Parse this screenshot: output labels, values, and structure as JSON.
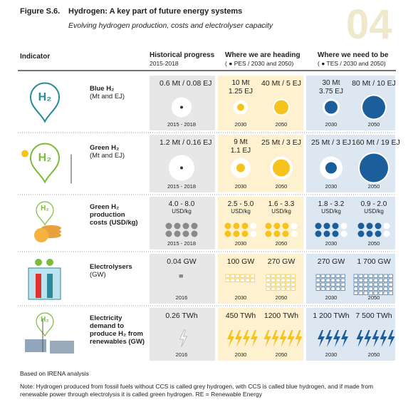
{
  "header": {
    "figure": "Figure S.6.",
    "title": "Hydrogen: A key part of future energy systems",
    "subtitle": "Evolving hydrogen production, costs and electrolyser capacity",
    "badge": "04"
  },
  "columns": {
    "indicator": "Indicator",
    "historical": "Historical progress",
    "historical_sub": "2015-2018",
    "heading": "Where we are heading",
    "heading_sub": "( ● PES / 2030 and 2050)",
    "need": "Where we need to be",
    "need_sub": "( ● TES / 2030 and 2050)"
  },
  "rows": [
    {
      "icon": "H₂",
      "name": [
        "Blue H₂"
      ],
      "sub": "(Mt and EJ)",
      "cells": [
        {
          "value": [
            "0.6 Mt / 0.08 EJ"
          ],
          "year": "2015 - 2018"
        },
        {
          "value": [
            "10 Mt",
            "1.25 EJ"
          ],
          "year": "2030"
        },
        {
          "value": [
            "40 Mt / 5 EJ"
          ],
          "year": "2050"
        },
        {
          "value": [
            "30 Mt",
            "3.75 EJ"
          ],
          "year": "2030"
        },
        {
          "value": [
            "80 Mt / 10 EJ"
          ],
          "year": "2050"
        }
      ]
    },
    {
      "icon": "H₂",
      "name": [
        "Green H₂"
      ],
      "sub": "(Mt and EJ)",
      "cells": [
        {
          "value": [
            "1.2 Mt / 0.16 EJ"
          ],
          "year": "2015 - 2018"
        },
        {
          "value": [
            "9 Mt",
            "1.1 EJ"
          ],
          "year": "2030"
        },
        {
          "value": [
            "25 Mt / 3 EJ"
          ],
          "year": "2050"
        },
        {
          "value": [
            "25 Mt / 3 EJ"
          ],
          "year": "2030"
        },
        {
          "value": [
            "160 Mt / 19 EJ"
          ],
          "year": "2050"
        }
      ]
    },
    {
      "icon": "H₂",
      "name": [
        "Green H₂",
        "production",
        "costs"
      ],
      "sub": "(USD/kg)",
      "cells": [
        {
          "value": [
            "4.0 - 8.0",
            "USD/kg"
          ],
          "year": "2015 - 2018"
        },
        {
          "value": [
            "2.5 - 5.0",
            "USD/kg"
          ],
          "year": "2030"
        },
        {
          "value": [
            "1.6 - 3.3",
            "USD/kg"
          ],
          "year": "2050"
        },
        {
          "value": [
            "1.8 - 3.2",
            "USD/kg"
          ],
          "year": "2030"
        },
        {
          "value": [
            "0.9 - 2.0",
            "USD/kg"
          ],
          "year": "2050"
        }
      ]
    },
    {
      "name": [
        "Electrolysers"
      ],
      "sub": "(GW)",
      "cells": [
        {
          "value": [
            "0.04 GW"
          ],
          "year": "2016"
        },
        {
          "value": [
            "100 GW"
          ],
          "year": "2030"
        },
        {
          "value": [
            "270 GW"
          ],
          "year": "2050"
        },
        {
          "value": [
            "270 GW"
          ],
          "year": "2030"
        },
        {
          "value": [
            "1 700 GW"
          ],
          "year": "2050"
        }
      ]
    },
    {
      "icon": "H₂",
      "name": [
        "Electricity",
        "demand to",
        "produce H₂ from",
        "renewables"
      ],
      "sub": "(GW)",
      "cells": [
        {
          "value": [
            "0.26 TWh"
          ],
          "year": "2016"
        },
        {
          "value": [
            "450 TWh"
          ],
          "year": "2030"
        },
        {
          "value": [
            "1200 TWh"
          ],
          "year": "2050"
        },
        {
          "value": [
            "1 200 TWh"
          ],
          "year": "2030"
        },
        {
          "value": [
            "7 500 TWh"
          ],
          "year": "2050"
        }
      ]
    }
  ],
  "footer": {
    "source": "Based on IRENA analysis",
    "note": "Note: Hydrogen produced from fossil fuels without CCS is called grey hydrogen, with CCS is called blue hydrogen, and if made from renewable power through electrolysis it is called green hydrogen. RE = Renewable Energy"
  }
}
